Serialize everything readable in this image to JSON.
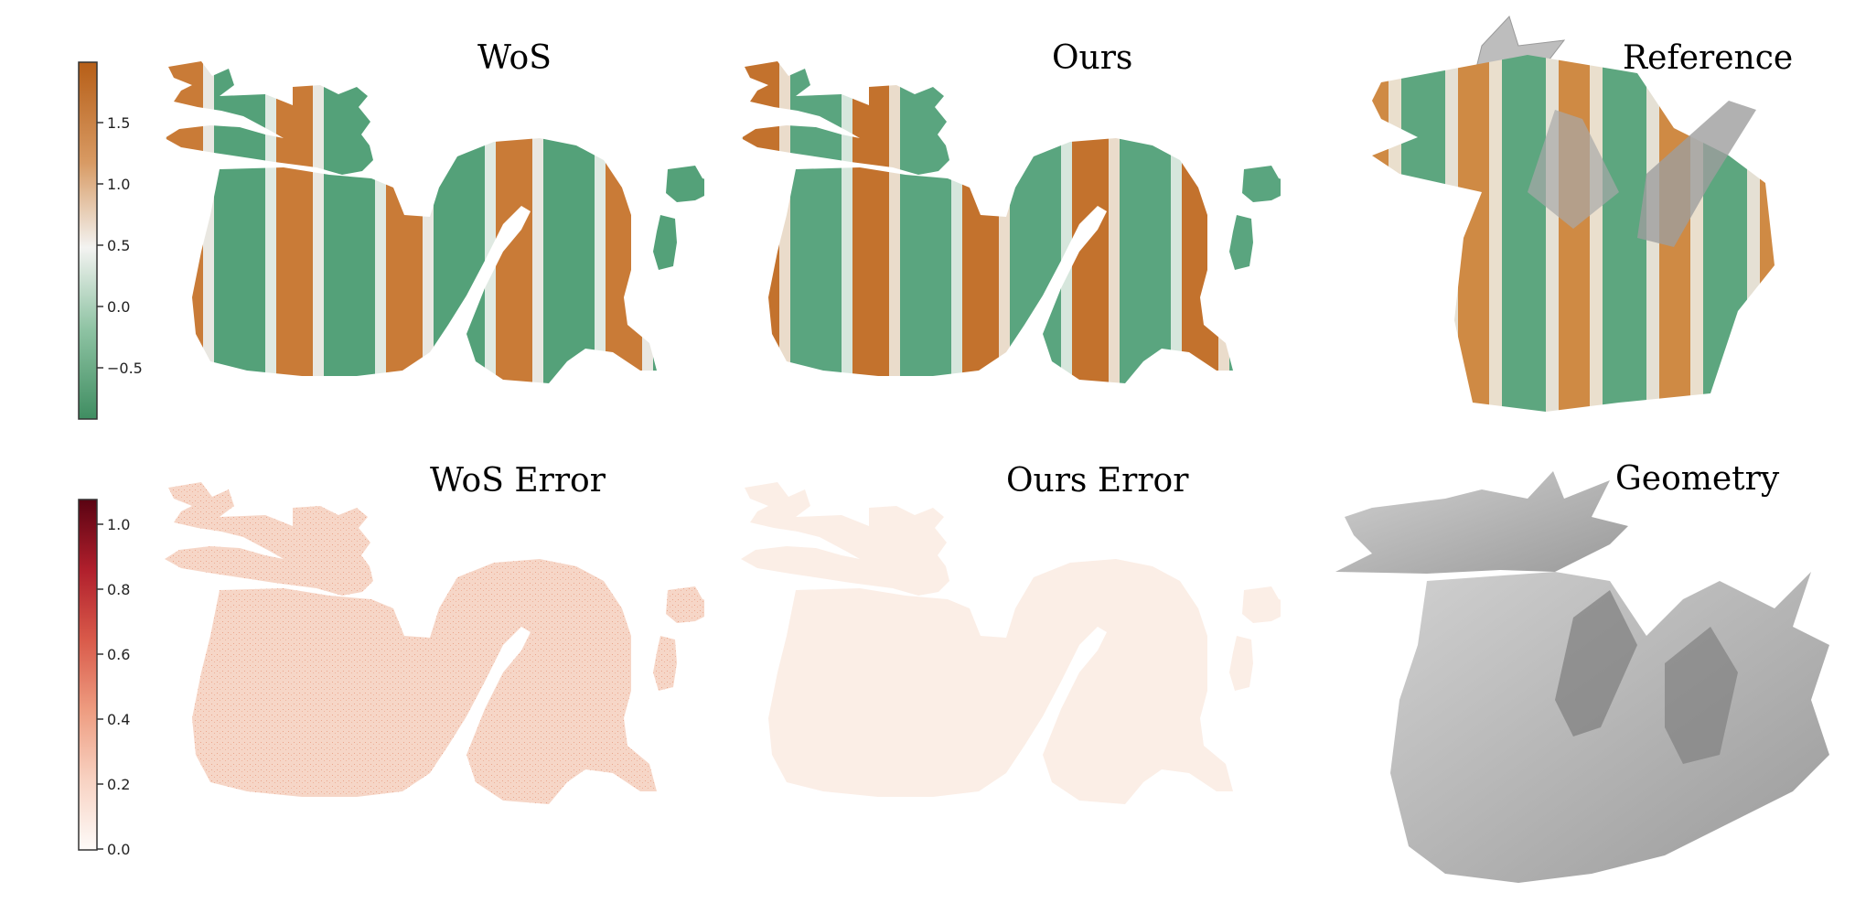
{
  "top_row": {
    "wos_title": "WoS",
    "ours_title": "Ours",
    "reference_title": "Reference"
  },
  "bottom_row": {
    "wos_error_title": "WoS Error",
    "ours_error_title": "Ours Error",
    "geometry_title": "Geometry"
  },
  "value_colorbar": {
    "ticks": [
      "1.5",
      "1.0",
      "0.5",
      "0.0",
      "−0.5"
    ],
    "colors": {
      "high": "#c0661c",
      "mid": "#f2f2f0",
      "low": "#4a9a6c"
    }
  },
  "error_colorbar": {
    "ticks": [
      "1.0",
      "0.8",
      "0.6",
      "0.4",
      "0.2",
      "0.0"
    ],
    "colors": {
      "high": "#5e0310",
      "mid": "#e58064",
      "low": "#fdf7f3"
    }
  }
}
